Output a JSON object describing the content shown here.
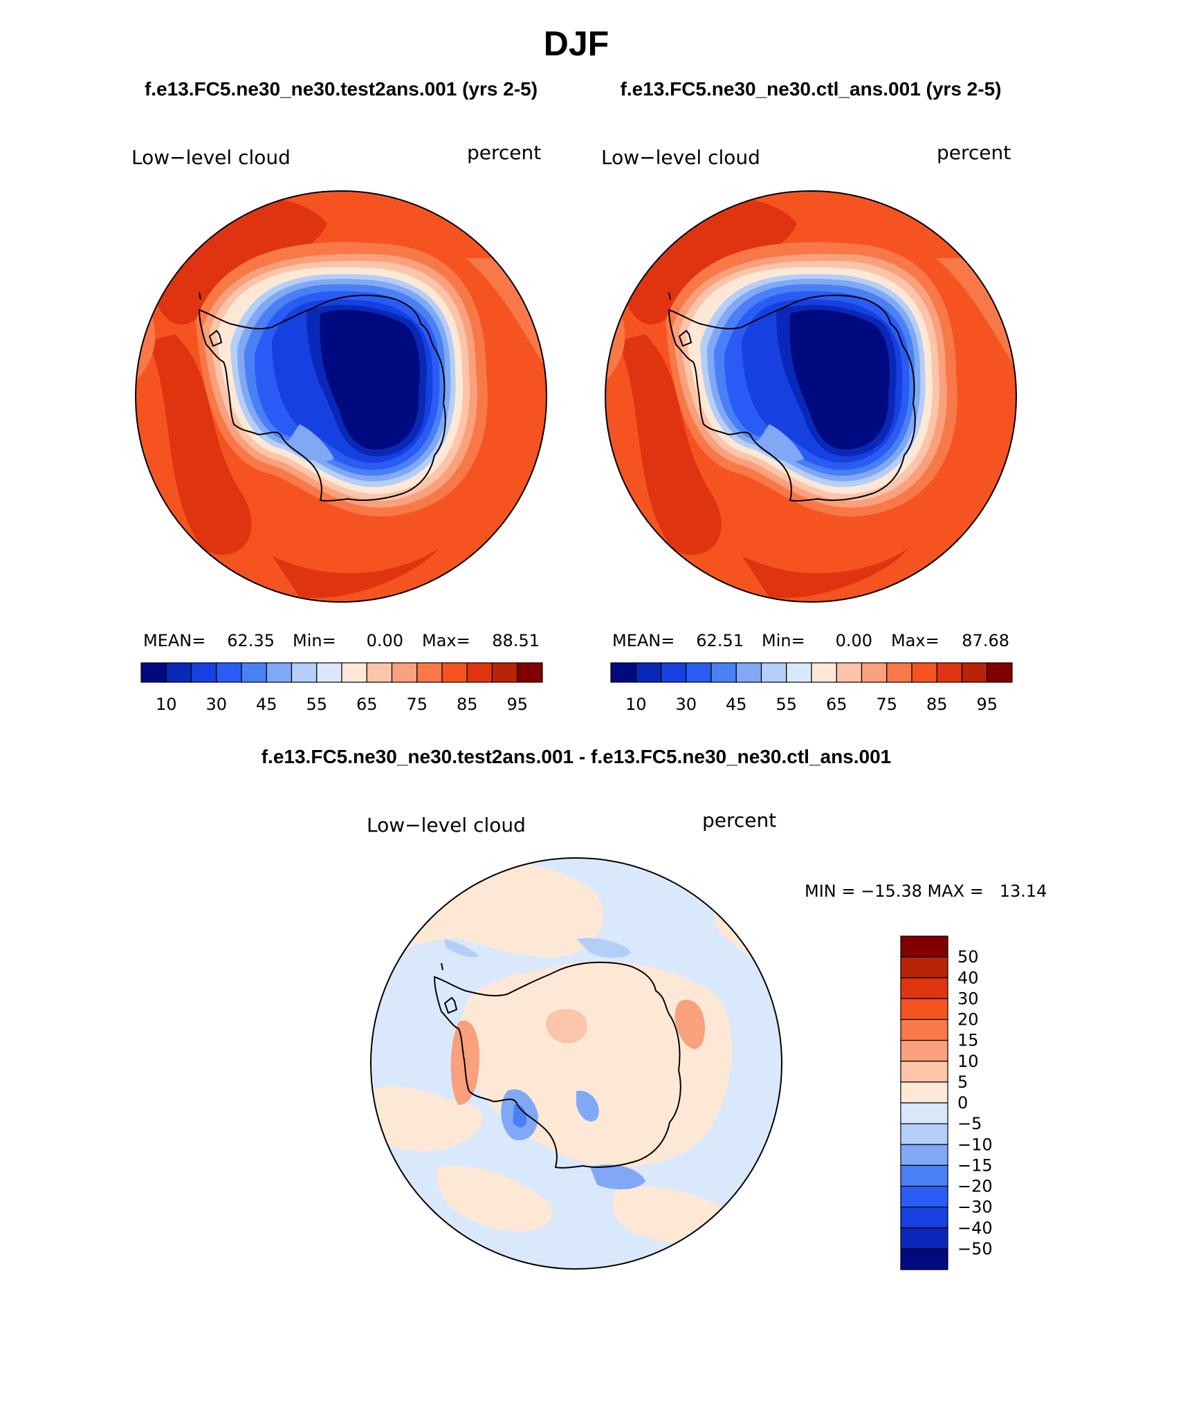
{
  "title": "DJF",
  "panels": [
    {
      "case_title": "f.e13.FC5.ne30_ne30.test2ans.001 (yrs 2-5)",
      "variable": "Low−level cloud",
      "units": "percent",
      "mean_label": "MEAN=",
      "mean": "62.35",
      "min_label": "Min=",
      "min": "0.00",
      "max_label": "Max=",
      "max": "88.51"
    },
    {
      "case_title": "f.e13.FC5.ne30_ne30.ctl_ans.001 (yrs 2-5)",
      "variable": "Low−level cloud",
      "units": "percent",
      "mean_label": "MEAN=",
      "mean": "62.51",
      "min_label": "Min=",
      "min": "0.00",
      "max_label": "Max=",
      "max": "87.68"
    }
  ],
  "diff_panel": {
    "case_title": "f.e13.FC5.ne30_ne30.test2ans.001 - f.e13.FC5.ne30_ne30.ctl_ans.001",
    "variable": "Low−level cloud",
    "units": "percent",
    "minmax_text": "MIN = −15.38 MAX =   13.14"
  },
  "colorbar_abs": {
    "colors": [
      "#000a80",
      "#0a28b8",
      "#1640e0",
      "#2a5cf5",
      "#4a80f5",
      "#80a8f5",
      "#b4cef8",
      "#dae8fb",
      "#fde8d6",
      "#fcc4a8",
      "#f9a07c",
      "#f87848",
      "#f55420",
      "#e03410",
      "#b82408",
      "#800000"
    ],
    "labels": [
      "10",
      "30",
      "45",
      "55",
      "65",
      "75",
      "85",
      "95"
    ]
  },
  "colorbar_diff": {
    "colors_top_to_bottom": [
      "#800000",
      "#b82408",
      "#e03410",
      "#f55420",
      "#f87848",
      "#f9a07c",
      "#fcc4a8",
      "#fde8d6",
      "#dae8fb",
      "#b4cef8",
      "#80a8f5",
      "#4a80f5",
      "#2a5cf5",
      "#1640e0",
      "#0a28b8",
      "#000a80"
    ],
    "labels_top_to_bottom": [
      "50",
      "40",
      "30",
      "20",
      "15",
      "10",
      "5",
      "0",
      "−5",
      "−10",
      "−15",
      "−20",
      "−30",
      "−40",
      "−50"
    ]
  },
  "chart_data": [
    {
      "type": "heatmap",
      "projection": "polar stereographic (south pole)",
      "title": "f.e13.FC5.ne30_ne30.test2ans.001 (yrs 2-5)",
      "variable": "Low−level cloud",
      "units": "percent",
      "mean": 62.35,
      "min": 0.0,
      "max": 88.51,
      "contour_levels": [
        10,
        30,
        45,
        55,
        65,
        75,
        85,
        95
      ]
    },
    {
      "type": "heatmap",
      "projection": "polar stereographic (south pole)",
      "title": "f.e13.FC5.ne30_ne30.ctl_ans.001 (yrs 2-5)",
      "variable": "Low−level cloud",
      "units": "percent",
      "mean": 62.51,
      "min": 0.0,
      "max": 87.68,
      "contour_levels": [
        10,
        30,
        45,
        55,
        65,
        75,
        85,
        95
      ]
    },
    {
      "type": "heatmap",
      "projection": "polar stereographic (south pole)",
      "title": "f.e13.FC5.ne30_ne30.test2ans.001 - f.e13.FC5.ne30_ne30.ctl_ans.001",
      "variable": "Low−level cloud",
      "units": "percent",
      "min": -15.38,
      "max": 13.14,
      "contour_levels": [
        -50,
        -40,
        -30,
        -20,
        -15,
        -10,
        -5,
        0,
        5,
        10,
        15,
        20,
        30,
        40,
        50
      ]
    }
  ]
}
